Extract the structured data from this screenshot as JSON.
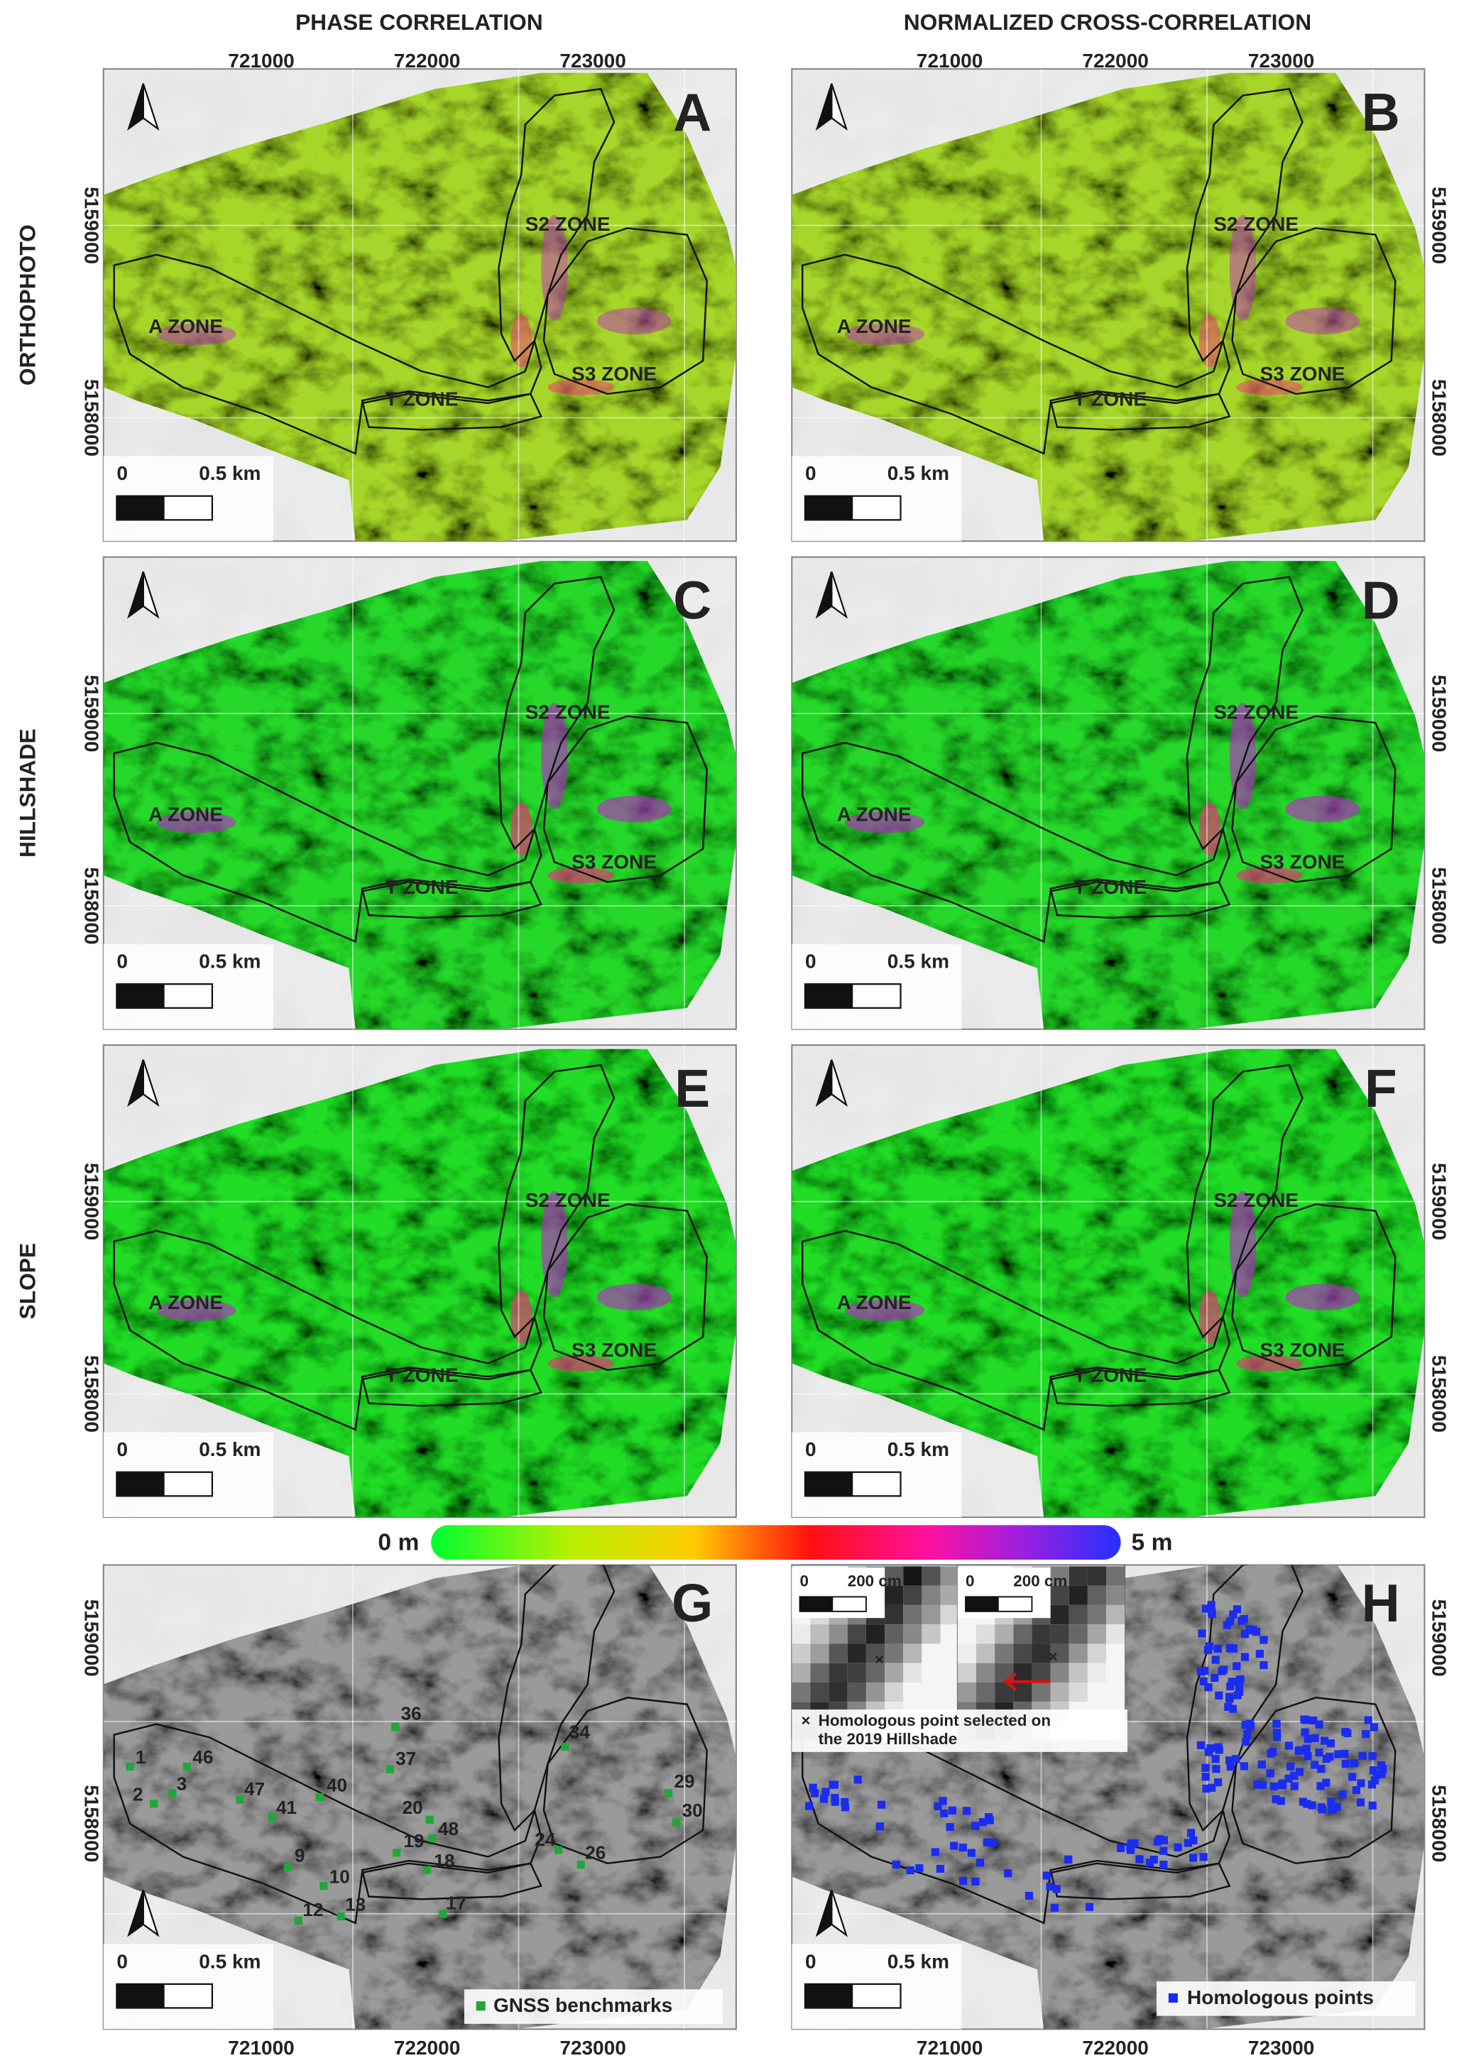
{
  "column_titles": [
    "PHASE CORRELATION",
    "NORMALIZED CROSS-CORRELATION"
  ],
  "row_titles": [
    "ORTHOPHOTO",
    "HILLSHADE",
    "SLOPE"
  ],
  "panel_letters": [
    "A",
    "B",
    "C",
    "D",
    "E",
    "F",
    "G",
    "H"
  ],
  "zone_labels": [
    "S2 ZONE",
    "A ZONE",
    "T ZONE",
    "S3 ZONE"
  ],
  "scale_bar": {
    "start": "0",
    "end": "0.5 km"
  },
  "easting_labels": [
    "721000",
    "722000",
    "723000"
  ],
  "northing_labels": [
    "5159000",
    "5158000"
  ],
  "colorbar": {
    "min": "0 m",
    "max": "5 m"
  },
  "gnss_benchmarks": [
    "1",
    "46",
    "3",
    "2",
    "47",
    "40",
    "41",
    "36",
    "37",
    "34",
    "29",
    "30",
    "20",
    "48",
    "19",
    "18",
    "24",
    "26",
    "9",
    "10",
    "12",
    "13",
    "17"
  ],
  "legend": {
    "gnss": "GNSS benchmarks",
    "homologous": "Homologous points"
  },
  "inset": {
    "scale_start": "0",
    "scale_end": "200 cm",
    "note": [
      "Homologous point selected on",
      "the 2019 Hillshade"
    ]
  }
}
